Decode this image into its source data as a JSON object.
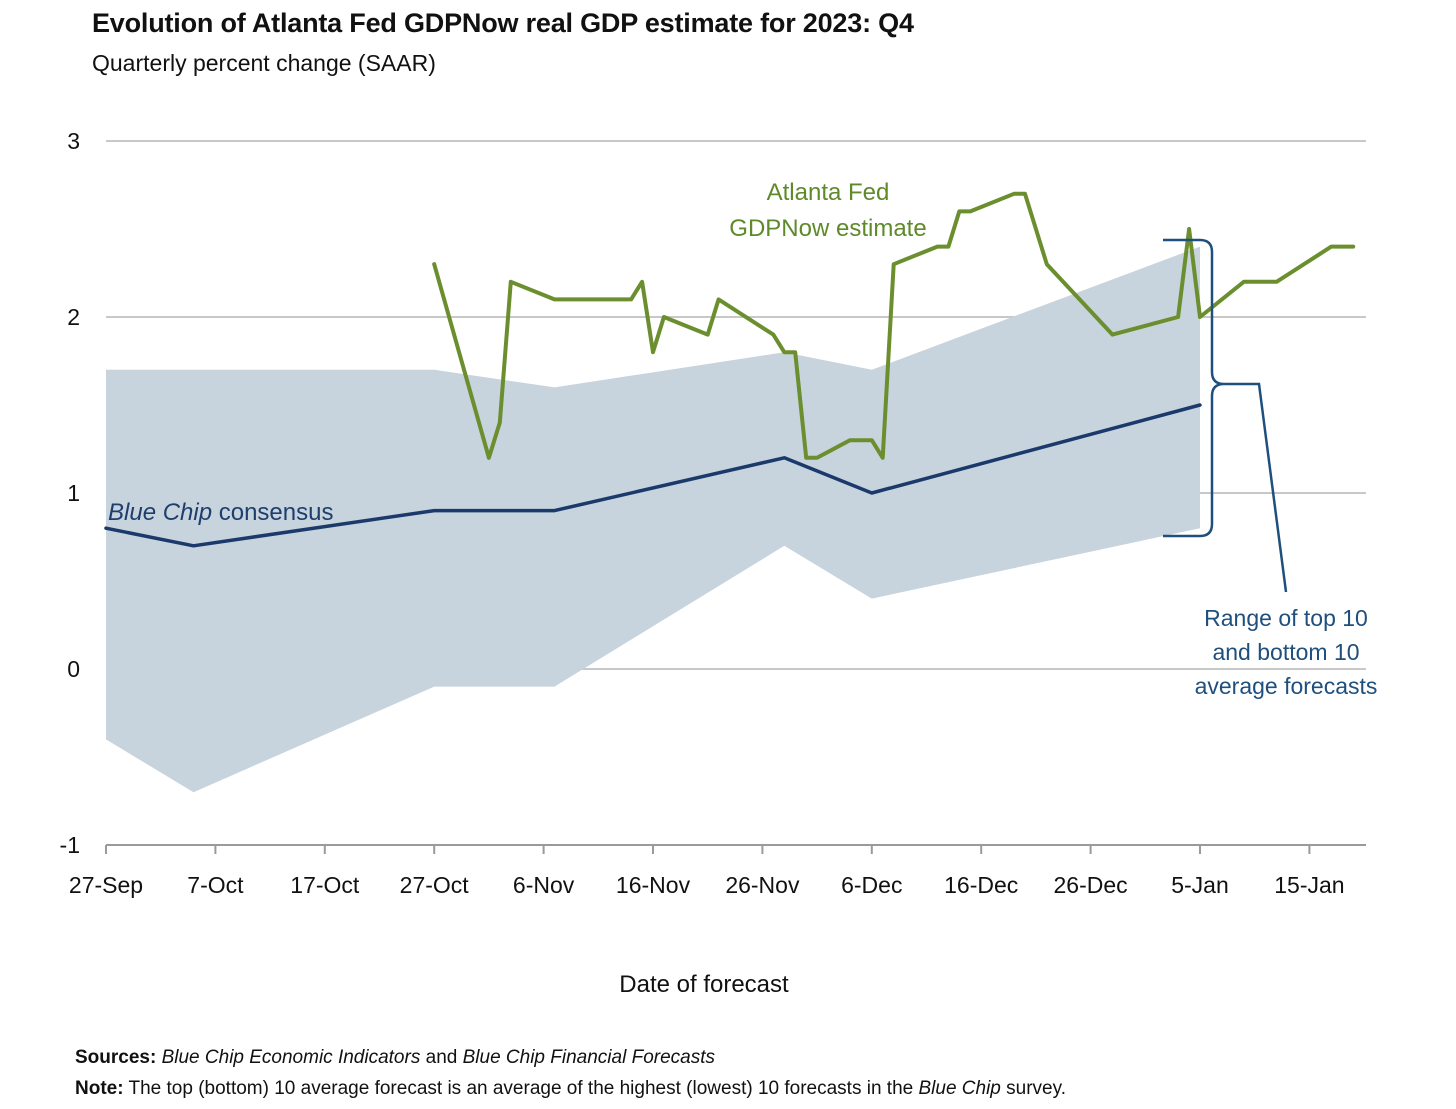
{
  "chart_data": {
    "type": "line",
    "title": "Evolution of Atlanta Fed GDPNow real GDP estimate for 2023: Q4",
    "subtitle": "Quarterly percent change (SAAR)",
    "xlabel": "Date of forecast",
    "ylabel": "",
    "ylim": [
      -1,
      3
    ],
    "yticks": [
      -1,
      0,
      1,
      2,
      3
    ],
    "xlim": [
      "2023-09-27",
      "2024-01-20"
    ],
    "xticks": [
      {
        "date": "2023-09-27",
        "label": "27-Sep"
      },
      {
        "date": "2023-10-07",
        "label": "7-Oct"
      },
      {
        "date": "2023-10-17",
        "label": "17-Oct"
      },
      {
        "date": "2023-10-27",
        "label": "27-Oct"
      },
      {
        "date": "2023-11-06",
        "label": "6-Nov"
      },
      {
        "date": "2023-11-16",
        "label": "16-Nov"
      },
      {
        "date": "2023-11-26",
        "label": "26-Nov"
      },
      {
        "date": "2023-12-06",
        "label": "6-Dec"
      },
      {
        "date": "2023-12-16",
        "label": "16-Dec"
      },
      {
        "date": "2023-12-26",
        "label": "26-Dec"
      },
      {
        "date": "2024-01-05",
        "label": "5-Jan"
      },
      {
        "date": "2024-01-15",
        "label": "15-Jan"
      }
    ],
    "grid": true,
    "colors": {
      "gdpnow": "#6b8e2e",
      "bluechip": "#1b3a6b",
      "range": "#c7d3dd",
      "grid": "#c8c8c8",
      "range_annotation": "#1e4f7d"
    },
    "series": [
      {
        "name": "Atlanta Fed GDPNow estimate",
        "type": "line",
        "points": [
          {
            "x": "2023-10-27",
            "y": 2.3
          },
          {
            "x": "2023-11-01",
            "y": 1.2
          },
          {
            "x": "2023-11-02",
            "y": 1.4
          },
          {
            "x": "2023-11-03",
            "y": 2.2
          },
          {
            "x": "2023-11-07",
            "y": 2.1
          },
          {
            "x": "2023-11-14",
            "y": 2.1
          },
          {
            "x": "2023-11-15",
            "y": 2.2
          },
          {
            "x": "2023-11-16",
            "y": 1.8
          },
          {
            "x": "2023-11-17",
            "y": 2.0
          },
          {
            "x": "2023-11-21",
            "y": 1.9
          },
          {
            "x": "2023-11-22",
            "y": 2.1
          },
          {
            "x": "2023-11-27",
            "y": 1.9
          },
          {
            "x": "2023-11-28",
            "y": 1.8
          },
          {
            "x": "2023-11-29",
            "y": 1.8
          },
          {
            "x": "2023-11-30",
            "y": 1.2
          },
          {
            "x": "2023-12-01",
            "y": 1.2
          },
          {
            "x": "2023-12-04",
            "y": 1.3
          },
          {
            "x": "2023-12-05",
            "y": 1.3
          },
          {
            "x": "2023-12-06",
            "y": 1.3
          },
          {
            "x": "2023-12-07",
            "y": 1.2
          },
          {
            "x": "2023-12-08",
            "y": 2.3
          },
          {
            "x": "2023-12-12",
            "y": 2.4
          },
          {
            "x": "2023-12-13",
            "y": 2.4
          },
          {
            "x": "2023-12-14",
            "y": 2.6
          },
          {
            "x": "2023-12-15",
            "y": 2.6
          },
          {
            "x": "2023-12-19",
            "y": 2.7
          },
          {
            "x": "2023-12-20",
            "y": 2.7
          },
          {
            "x": "2023-12-22",
            "y": 2.3
          },
          {
            "x": "2023-12-28",
            "y": 1.9
          },
          {
            "x": "2024-01-03",
            "y": 2.0
          },
          {
            "x": "2024-01-04",
            "y": 2.5
          },
          {
            "x": "2024-01-05",
            "y": 2.0
          },
          {
            "x": "2024-01-09",
            "y": 2.2
          },
          {
            "x": "2024-01-12",
            "y": 2.2
          },
          {
            "x": "2024-01-17",
            "y": 2.4
          },
          {
            "x": "2024-01-19",
            "y": 2.4
          }
        ]
      },
      {
        "name": "Blue Chip consensus",
        "type": "line",
        "points": [
          {
            "x": "2023-09-27",
            "y": 0.8
          },
          {
            "x": "2023-10-05",
            "y": 0.7
          },
          {
            "x": "2023-10-27",
            "y": 0.9
          },
          {
            "x": "2023-11-07",
            "y": 0.9
          },
          {
            "x": "2023-11-28",
            "y": 1.2
          },
          {
            "x": "2023-12-06",
            "y": 1.0
          },
          {
            "x": "2024-01-05",
            "y": 1.5
          }
        ]
      },
      {
        "name": "Range of top 10 and bottom 10 average forecasts",
        "type": "area",
        "points": [
          {
            "x": "2023-09-27",
            "low": -0.4,
            "high": 1.7
          },
          {
            "x": "2023-10-05",
            "low": -0.7,
            "high": 1.7
          },
          {
            "x": "2023-10-27",
            "low": -0.1,
            "high": 1.7
          },
          {
            "x": "2023-11-07",
            "low": -0.1,
            "high": 1.6
          },
          {
            "x": "2023-11-28",
            "low": 0.7,
            "high": 1.8
          },
          {
            "x": "2023-12-06",
            "low": 0.4,
            "high": 1.7
          },
          {
            "x": "2024-01-05",
            "low": 0.8,
            "high": 2.4
          }
        ]
      }
    ],
    "annotations": {
      "gdpnow_label": [
        "Atlanta Fed",
        "GDPNow estimate"
      ],
      "bluechip_label_italic": "Blue Chip",
      "bluechip_label_rest": " consensus",
      "range_label": [
        "Range of top 10",
        "and bottom 10",
        "average forecasts"
      ]
    }
  },
  "footnotes": {
    "sources_label": "Sources:",
    "sources_part1": "Blue Chip Economic Indicators",
    "sources_and": " and ",
    "sources_part2": "Blue Chip Financial Forecasts",
    "note_label": "Note:",
    "note_part1": " The top (bottom) 10 average forecast is an average of the highest (lowest) 10 forecasts in the ",
    "note_italic": "Blue Chip",
    "note_part2": " survey."
  }
}
